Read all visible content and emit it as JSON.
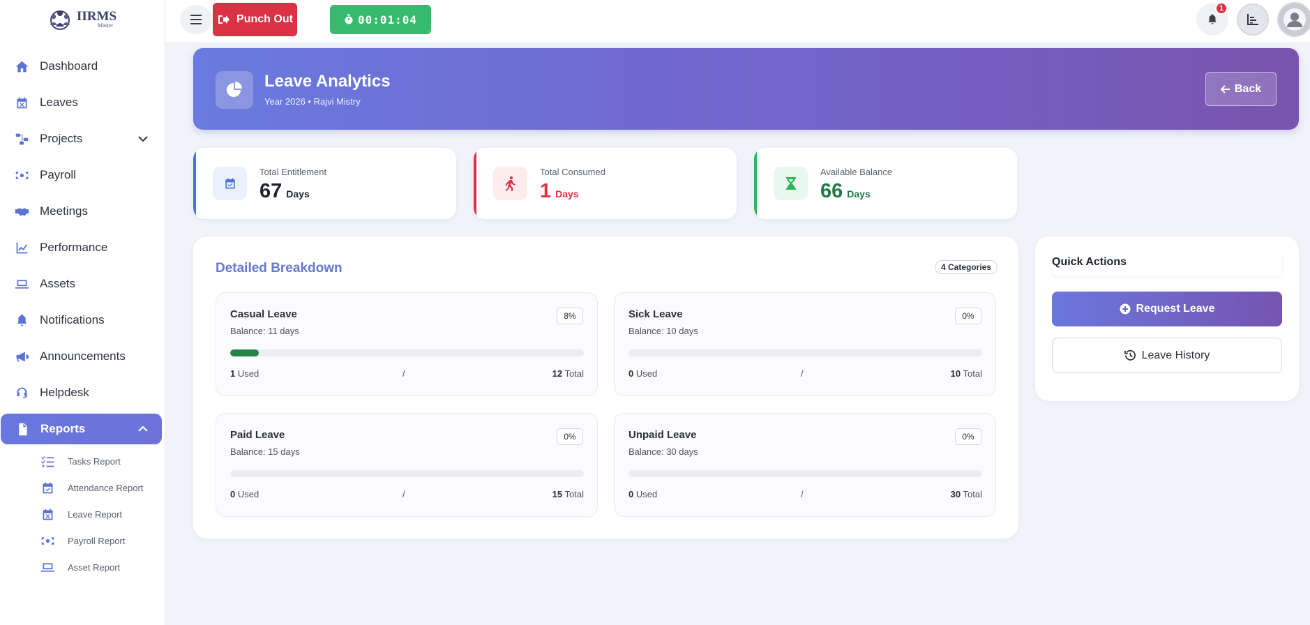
{
  "app": {
    "logo_title": "IIRMS",
    "logo_sub": "Master"
  },
  "sidebar": {
    "items": [
      {
        "label": "Dashboard",
        "icon": "home-icon"
      },
      {
        "label": "Leaves",
        "icon": "calendar-x-icon"
      },
      {
        "label": "Projects",
        "icon": "diagram-icon"
      },
      {
        "label": "Payroll",
        "icon": "money-icon"
      },
      {
        "label": "Meetings",
        "icon": "handshake-icon"
      },
      {
        "label": "Performance",
        "icon": "line-chart-icon"
      },
      {
        "label": "Assets",
        "icon": "laptop-icon"
      },
      {
        "label": "Notifications",
        "icon": "bell-icon"
      },
      {
        "label": "Announcements",
        "icon": "megaphone-icon"
      },
      {
        "label": "Helpdesk",
        "icon": "headset-icon"
      },
      {
        "label": "Reports",
        "icon": "file-icon"
      }
    ],
    "reports_sub": [
      {
        "label": "Tasks Report",
        "icon": "list-check-icon"
      },
      {
        "label": "Attendance Report",
        "icon": "calendar-check-icon"
      },
      {
        "label": "Leave Report",
        "icon": "calendar-x-icon"
      },
      {
        "label": "Payroll Report",
        "icon": "money-icon"
      },
      {
        "label": "Asset Report",
        "icon": "laptop-icon"
      }
    ]
  },
  "topbar": {
    "punch_label": "Punch Out",
    "timer": "00:01:04",
    "notification_count": "1"
  },
  "hero": {
    "title": "Leave Analytics",
    "subtitle": "Year 2026 • Rajvi Mistry",
    "back_label": "Back"
  },
  "stats": [
    {
      "label": "Total Entitlement",
      "value": "67",
      "unit": "Days"
    },
    {
      "label": "Total Consumed",
      "value": "1",
      "unit": "Days"
    },
    {
      "label": "Available Balance",
      "value": "66",
      "unit": "Days"
    }
  ],
  "breakdown": {
    "title": "Detailed Breakdown",
    "badge": "4 Categories",
    "used_word": "Used",
    "total_word": "Total",
    "separator": "/",
    "items": [
      {
        "name": "Casual Leave",
        "balance": "Balance: 11 days",
        "pct": "8%",
        "progress": 0.08,
        "used": "1",
        "total": "12"
      },
      {
        "name": "Sick Leave",
        "balance": "Balance: 10 days",
        "pct": "0%",
        "progress": 0,
        "used": "0",
        "total": "10"
      },
      {
        "name": "Paid Leave",
        "balance": "Balance: 15 days",
        "pct": "0%",
        "progress": 0,
        "used": "0",
        "total": "15"
      },
      {
        "name": "Unpaid Leave",
        "balance": "Balance: 30 days",
        "pct": "0%",
        "progress": 0,
        "used": "0",
        "total": "30"
      }
    ]
  },
  "quick_actions": {
    "title": "Quick Actions",
    "request_label": "Request Leave",
    "history_label": "Leave History"
  },
  "colors": {
    "accent": "#6877de",
    "danger": "#dc3045",
    "success": "#36bb6e",
    "progress": "#228449"
  }
}
